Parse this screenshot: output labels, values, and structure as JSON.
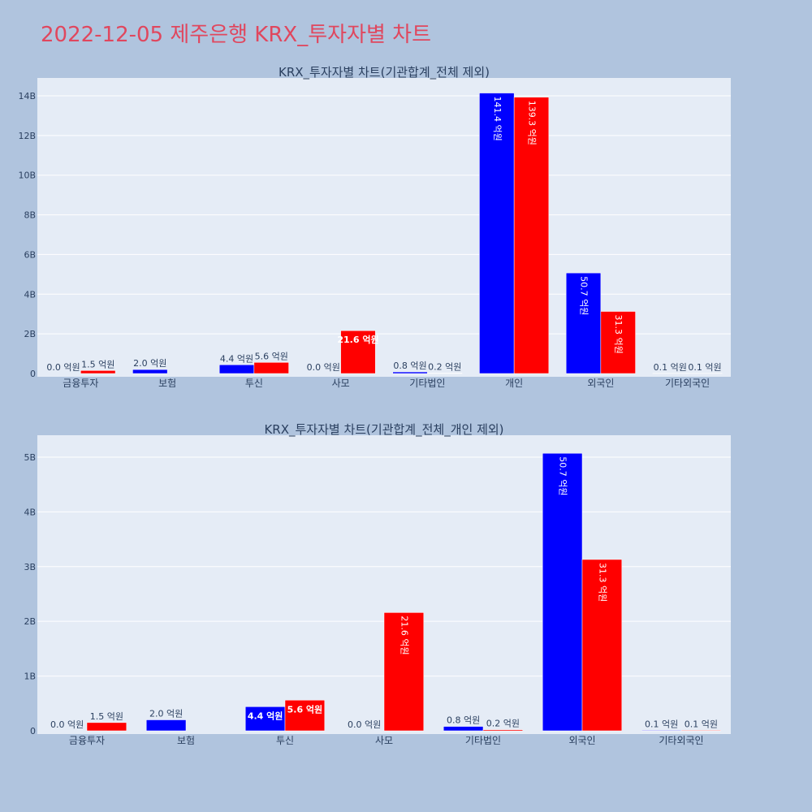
{
  "page": {
    "title": "2022-12-05 제주은행 KRX_투자자별 차트"
  },
  "colors": {
    "background": "#b0c4de",
    "plot_bg": "#e5ecf6",
    "series_a": "#0000ff",
    "series_b": "#ff0000",
    "title": "#e0475e"
  },
  "chart_data": [
    {
      "type": "bar",
      "title": "KRX_투자자별 차트(기관합계_전체 제외)",
      "categories": [
        "금융투자",
        "보험",
        "투신",
        "사모",
        "기타법인",
        "개인",
        "외국인",
        "기타외국인"
      ],
      "series": [
        {
          "color": "#0000ff",
          "values": [
            0.0,
            2.0,
            4.4,
            0.0,
            0.8,
            141.4,
            50.7,
            0.1
          ],
          "labels": [
            "0.0 억원",
            "2.0 억원",
            "4.4 억원",
            "0.0 억원",
            "0.8 억원",
            "141.4 억원",
            "50.7 억원",
            "0.1 억원"
          ]
        },
        {
          "color": "#ff0000",
          "values": [
            1.5,
            0,
            5.6,
            21.6,
            0.2,
            139.3,
            31.3,
            0.1
          ],
          "labels": [
            "1.5 억원",
            "",
            "5.6 억원",
            "21.6 억원",
            "0.2 억원",
            "139.3 억원",
            "31.3 억원",
            "0.1 억원"
          ]
        }
      ],
      "yticks": [
        {
          "value": 0,
          "label": "0"
        },
        {
          "value": 20,
          "label": "2B"
        },
        {
          "value": 40,
          "label": "4B"
        },
        {
          "value": 60,
          "label": "6B"
        },
        {
          "value": 80,
          "label": "8B"
        },
        {
          "value": 100,
          "label": "10B"
        },
        {
          "value": 120,
          "label": "12B"
        },
        {
          "value": 140,
          "label": "14B"
        }
      ],
      "ylim": [
        0,
        149
      ],
      "grid": true
    },
    {
      "type": "bar",
      "title": "KRX_투자자별 차트(기관합계_전체_개인 제외)",
      "categories": [
        "금융투자",
        "보험",
        "투신",
        "사모",
        "기타법인",
        "외국인",
        "기타외국인"
      ],
      "series": [
        {
          "color": "#0000ff",
          "values": [
            0.0,
            2.0,
            4.4,
            0.0,
            0.8,
            50.7,
            0.1
          ],
          "labels": [
            "0.0 억원",
            "2.0 억원",
            "4.4 억원",
            "0.0 억원",
            "0.8 억원",
            "50.7 억원",
            "0.1 억원"
          ]
        },
        {
          "color": "#ff0000",
          "values": [
            1.5,
            0,
            5.6,
            21.6,
            0.2,
            31.3,
            0.1
          ],
          "labels": [
            "1.5 억원",
            "",
            "5.6 억원",
            "21.6 억원",
            "0.2 억원",
            "31.3 억원",
            "0.1 억원"
          ]
        }
      ],
      "yticks": [
        {
          "value": 0,
          "label": "0"
        },
        {
          "value": 10,
          "label": "1B"
        },
        {
          "value": 20,
          "label": "2B"
        },
        {
          "value": 30,
          "label": "3B"
        },
        {
          "value": 40,
          "label": "4B"
        },
        {
          "value": 50,
          "label": "5B"
        }
      ],
      "ylim": [
        0,
        54
      ],
      "grid": true
    }
  ]
}
